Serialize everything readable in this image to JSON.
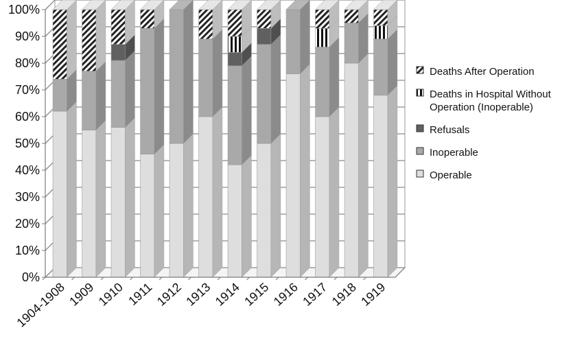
{
  "chart_data": {
    "type": "bar",
    "stacked": true,
    "percent_stacked": true,
    "three_d": true,
    "categories": [
      "1904-1908",
      "1909",
      "1910",
      "1911",
      "1912",
      "1913",
      "1914",
      "1915",
      "1916",
      "1917",
      "1918",
      "1919"
    ],
    "series": [
      {
        "name": "Operable",
        "color": "#dedede",
        "pattern": "solid",
        "values": [
          62,
          55,
          56,
          46,
          50,
          60,
          42,
          50,
          76,
          60,
          80,
          68
        ]
      },
      {
        "name": "Inoperable",
        "color": "#a9a9a9",
        "pattern": "solid",
        "values": [
          12,
          22,
          25,
          47,
          50,
          29,
          37,
          37,
          24,
          26,
          15,
          21
        ]
      },
      {
        "name": "Refusals",
        "color": "#606060",
        "pattern": "solid",
        "values": [
          0,
          0,
          6,
          0,
          0,
          0,
          5,
          6,
          0,
          0,
          0,
          0
        ]
      },
      {
        "name": "Deaths in Hospital Without Operation (Inoperable)",
        "color": "#ffffff",
        "pattern": "vertical-stripes",
        "values": [
          0,
          0,
          0,
          0,
          0,
          0,
          6,
          0,
          0,
          7,
          0,
          5
        ]
      },
      {
        "name": "Deaths After Operation",
        "color": "#ffffff",
        "pattern": "diagonal-stripes",
        "values": [
          26,
          23,
          13,
          7,
          0,
          11,
          10,
          7,
          0,
          7,
          5,
          6
        ]
      }
    ],
    "y_ticks": [
      "0%",
      "10%",
      "20%",
      "30%",
      "40%",
      "50%",
      "60%",
      "70%",
      "80%",
      "90%",
      "100%"
    ],
    "ylim": [
      0,
      100
    ],
    "grid": true,
    "legend": {
      "position": "right",
      "entries": [
        "Deaths After Operation",
        "Deaths in Hospital Without Operation (Inoperable)",
        "Refusals",
        "Inoperable",
        "Operable"
      ],
      "labels": [
        {
          "lines": [
            "Deaths After Operation"
          ]
        },
        {
          "lines": [
            "Deaths in Hospital Without",
            "Operation (Inoperable)"
          ]
        },
        {
          "lines": [
            "Refusals"
          ]
        },
        {
          "lines": [
            "Inoperable"
          ]
        },
        {
          "lines": [
            "Operable"
          ]
        }
      ]
    },
    "title": "",
    "xlabel": "",
    "ylabel": ""
  }
}
